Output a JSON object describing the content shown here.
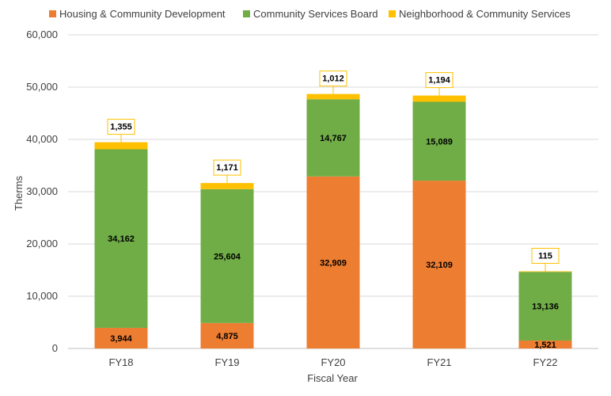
{
  "chart_data": {
    "type": "bar",
    "stacked": true,
    "title": "",
    "xlabel": "Fiscal Year",
    "ylabel": "Therms",
    "ylim": [
      0,
      60000
    ],
    "yticks": [
      0,
      10000,
      20000,
      30000,
      40000,
      50000,
      60000
    ],
    "ytick_labels": [
      "0",
      "10,000",
      "20,000",
      "30,000",
      "40,000",
      "50,000",
      "60,000"
    ],
    "grid": true,
    "legend_position": "top",
    "categories": [
      "FY18",
      "FY19",
      "FY20",
      "FY21",
      "FY22"
    ],
    "series": [
      {
        "name": "Housing & Community Development",
        "color": "#ED7D31",
        "values": [
          3944,
          4875,
          32909,
          32109,
          1521
        ],
        "labels": [
          "3,944",
          "4,875",
          "32,909",
          "32,109",
          "1,521"
        ]
      },
      {
        "name": "Community Services Board",
        "color": "#70AD47",
        "values": [
          34162,
          25604,
          14767,
          15089,
          13136
        ],
        "labels": [
          "34,162",
          "25,604",
          "14,767",
          "15,089",
          "13,136"
        ]
      },
      {
        "name": "Neighborhood & Community Services",
        "color": "#FFC000",
        "values": [
          1355,
          1171,
          1012,
          1194,
          115
        ],
        "labels": [
          "1,355",
          "1,171",
          "1,012",
          "1,194",
          "115"
        ]
      }
    ]
  }
}
